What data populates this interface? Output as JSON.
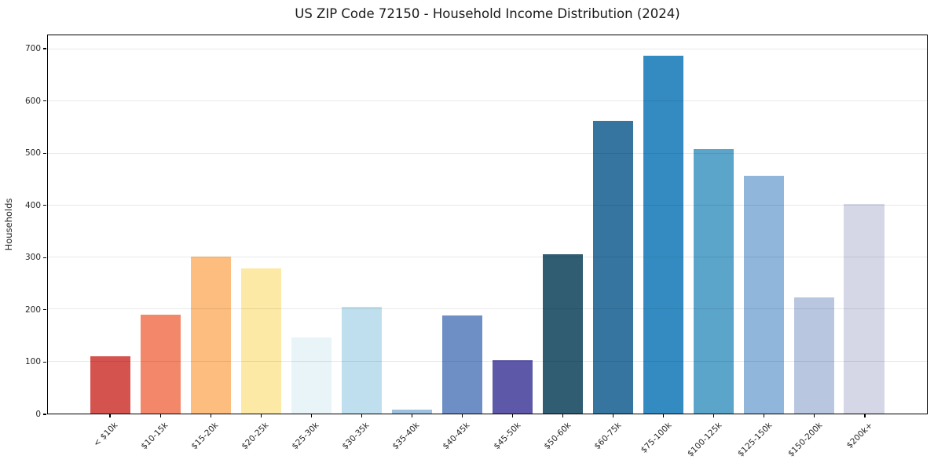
{
  "figure": {
    "title": "US ZIP Code 72150 - Household Income Distribution (2024)"
  },
  "chart_data": {
    "type": "bar",
    "title": "US ZIP Code 72150 - Household Income Distribution (2024)",
    "xlabel": "",
    "ylabel": "Households",
    "categories": [
      "< $10k",
      "$10-15k",
      "$15-20k",
      "$20-25k",
      "$25-30k",
      "$30-35k",
      "$35-40k",
      "$40-45k",
      "$45-50k",
      "$50-60k",
      "$60-75k",
      "$75-100k",
      "$100-125k",
      "$125-150k",
      "$150-200k",
      "$200k+"
    ],
    "values": [
      110,
      190,
      301,
      279,
      147,
      205,
      8,
      189,
      102,
      306,
      562,
      688,
      509,
      457,
      223,
      403
    ],
    "bar_colors": [
      "#d5534f",
      "#f2876a",
      "#fcbd7e",
      "#fde9a6",
      "#e8f4f8",
      "#bfdfee",
      "#9cc0de",
      "#6d8fc5",
      "#5d59a8",
      "#305d72",
      "#35759f",
      "#348bc1",
      "#5ba4ca",
      "#90b6db",
      "#b9c6e0",
      "#d6d7e6"
    ],
    "yticks": [
      0,
      100,
      200,
      300,
      400,
      500,
      600,
      700
    ],
    "ylim": [
      0,
      727
    ],
    "grid": "horizontal-only",
    "legend": "none",
    "background_color": "#ffffff",
    "grid_color": "#e8e8e8",
    "spine_color": "#000000",
    "text_color": "#262626"
  }
}
